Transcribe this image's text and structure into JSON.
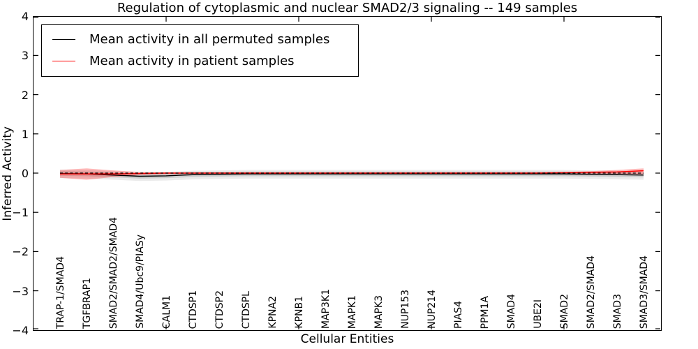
{
  "chart_data": {
    "type": "line",
    "title": "Regulation of cytoplasmic and nuclear SMAD2/3 signaling -- 149 samples",
    "xlabel": "Cellular Entities",
    "ylabel": "Inferred Activity",
    "ylim": [
      -4,
      4
    ],
    "yticks": [
      4,
      3,
      2,
      1,
      0,
      -1,
      -2,
      -3,
      -4
    ],
    "xticks_top_units": [
      5,
      10,
      15,
      20
    ],
    "grid": false,
    "legend_position": "upper left",
    "categories": [
      "TRAP-1/SMAD4",
      "TGFBRAP1",
      "SMAD2/SMAD2/SMAD4",
      "SMAD4/Ubc9/PIASy",
      "CALM1",
      "CTDSP1",
      "CTDSP2",
      "CTDSPL",
      "KPNA2",
      "KPNB1",
      "MAP3K1",
      "MAPK1",
      "MAPK3",
      "NUP153",
      "NUP214",
      "PIAS4",
      "PPM1A",
      "SMAD4",
      "UBE2I",
      "SMAD2",
      "SMAD2/SMAD4",
      "SMAD3",
      "SMAD3/SMAD4"
    ],
    "series": [
      {
        "name": "Mean activity in all permuted samples",
        "color": "#000000",
        "values": [
          -0.01,
          -0.02,
          -0.05,
          -0.08,
          -0.07,
          -0.04,
          -0.03,
          -0.02,
          -0.02,
          -0.02,
          -0.02,
          -0.02,
          -0.02,
          -0.02,
          -0.02,
          -0.02,
          -0.02,
          -0.02,
          -0.02,
          -0.02,
          -0.03,
          -0.04,
          -0.05
        ]
      },
      {
        "name": "Mean activity in patient samples",
        "color": "#ff0000",
        "values": [
          -0.02,
          -0.02,
          -0.02,
          -0.01,
          0.0,
          0.0,
          0.0,
          0.0,
          0.0,
          0.0,
          0.0,
          0.0,
          0.0,
          0.0,
          0.0,
          0.0,
          0.0,
          0.0,
          0.0,
          0.01,
          0.02,
          0.03,
          0.06
        ]
      }
    ],
    "bands": [
      {
        "name": "permuted-std-outer",
        "color": "#000000",
        "opacity": 0.08,
        "upper": [
          0.09,
          0.08,
          0.05,
          0.02,
          0.03,
          0.06,
          0.07,
          0.08,
          0.08,
          0.08,
          0.08,
          0.08,
          0.08,
          0.08,
          0.08,
          0.08,
          0.08,
          0.08,
          0.08,
          0.08,
          0.07,
          0.06,
          0.05
        ],
        "lower": [
          -0.13,
          -0.14,
          -0.17,
          -0.2,
          -0.19,
          -0.16,
          -0.15,
          -0.14,
          -0.14,
          -0.14,
          -0.14,
          -0.14,
          -0.14,
          -0.14,
          -0.14,
          -0.14,
          -0.14,
          -0.14,
          -0.14,
          -0.14,
          -0.15,
          -0.16,
          -0.17
        ]
      },
      {
        "name": "permuted-std-inner",
        "color": "#000000",
        "opacity": 0.12,
        "upper": [
          0.05,
          0.04,
          0.01,
          -0.02,
          -0.01,
          0.02,
          0.03,
          0.04,
          0.04,
          0.04,
          0.04,
          0.04,
          0.04,
          0.04,
          0.04,
          0.04,
          0.04,
          0.04,
          0.04,
          0.04,
          0.03,
          0.02,
          0.01
        ],
        "lower": [
          -0.07,
          -0.08,
          -0.11,
          -0.14,
          -0.13,
          -0.1,
          -0.09,
          -0.08,
          -0.08,
          -0.08,
          -0.08,
          -0.08,
          -0.08,
          -0.08,
          -0.08,
          -0.08,
          -0.08,
          -0.08,
          -0.08,
          -0.08,
          -0.09,
          -0.1,
          -0.11
        ]
      },
      {
        "name": "patient-std",
        "color": "#ff0000",
        "opacity": 0.28,
        "upper": [
          0.08,
          0.12,
          0.07,
          0.03,
          0.02,
          0.02,
          0.02,
          0.02,
          0.02,
          0.02,
          0.02,
          0.02,
          0.02,
          0.02,
          0.02,
          0.02,
          0.02,
          0.02,
          0.02,
          0.03,
          0.05,
          0.08,
          0.12
        ],
        "lower": [
          -0.12,
          -0.17,
          -0.1,
          -0.05,
          -0.03,
          -0.02,
          -0.02,
          -0.02,
          -0.02,
          -0.02,
          -0.02,
          -0.02,
          -0.02,
          -0.02,
          -0.02,
          -0.02,
          -0.02,
          -0.02,
          -0.02,
          -0.02,
          -0.02,
          -0.02,
          -0.03
        ]
      }
    ],
    "zero_line": {
      "y": 0,
      "style": "dashed",
      "color": "#000000"
    },
    "legend": {
      "entries": [
        {
          "label": "Mean activity in all permuted samples",
          "color": "#000000"
        },
        {
          "label": "Mean activity in patient samples",
          "color": "#ff0000"
        }
      ]
    }
  }
}
